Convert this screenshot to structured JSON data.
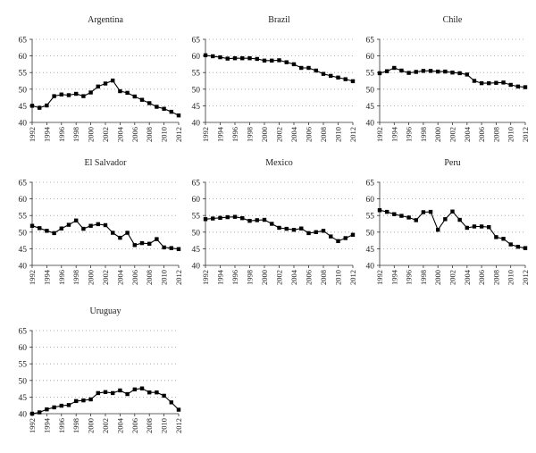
{
  "figure": {
    "x_ticks": [
      "1992",
      "1994",
      "1996",
      "1998",
      "2000",
      "2002",
      "2004",
      "2006",
      "2008",
      "2010",
      "2012"
    ],
    "y_ticks": [
      40,
      45,
      50,
      55,
      60,
      65
    ]
  },
  "chart_data": [
    {
      "type": "line",
      "title": "Argentina",
      "x": [
        1992,
        1993,
        1994,
        1995,
        1996,
        1997,
        1998,
        1999,
        2000,
        2001,
        2002,
        2003,
        2004,
        2005,
        2006,
        2007,
        2008,
        2009,
        2010,
        2011,
        2012
      ],
      "values": [
        45.0,
        44.4,
        45.1,
        47.9,
        48.4,
        48.2,
        48.6,
        47.9,
        49.0,
        50.8,
        51.7,
        52.6,
        49.4,
        48.9,
        47.8,
        46.8,
        45.8,
        44.7,
        44.1,
        43.2,
        42.1
      ],
      "xlim": [
        1992,
        2012
      ],
      "ylim": [
        40,
        65
      ],
      "grid": "dotted horizontal"
    },
    {
      "type": "line",
      "title": "Brazil",
      "x": [
        1992,
        1993,
        1994,
        1995,
        1996,
        1997,
        1998,
        1999,
        2000,
        2001,
        2002,
        2003,
        2004,
        2005,
        2006,
        2007,
        2008,
        2009,
        2010,
        2011,
        2012
      ],
      "values": [
        60.2,
        59.9,
        59.6,
        59.2,
        59.3,
        59.3,
        59.3,
        59.1,
        58.6,
        58.6,
        58.7,
        58.1,
        57.5,
        56.4,
        56.4,
        55.6,
        54.6,
        54.0,
        53.5,
        53.0,
        52.4
      ],
      "xlim": [
        1992,
        2012
      ],
      "ylim": [
        40,
        65
      ],
      "grid": "dotted horizontal"
    },
    {
      "type": "line",
      "title": "Chile",
      "x": [
        1992,
        1993,
        1994,
        1995,
        1996,
        1997,
        1998,
        1999,
        2000,
        2001,
        2002,
        2003,
        2004,
        2005,
        2006,
        2007,
        2008,
        2009,
        2010,
        2011,
        2012
      ],
      "values": [
        54.8,
        55.4,
        56.4,
        55.6,
        54.9,
        55.2,
        55.5,
        55.5,
        55.3,
        55.3,
        55.0,
        54.8,
        54.4,
        52.5,
        51.8,
        51.8,
        51.9,
        52.0,
        51.3,
        50.8,
        50.6
      ],
      "xlim": [
        1992,
        2012
      ],
      "ylim": [
        40,
        65
      ],
      "grid": "dotted horizontal"
    },
    {
      "type": "line",
      "title": "El Salvador",
      "x": [
        1992,
        1993,
        1994,
        1995,
        1996,
        1997,
        1998,
        1999,
        2000,
        2001,
        2002,
        2003,
        2004,
        2005,
        2006,
        2007,
        2008,
        2009,
        2010,
        2011,
        2012
      ],
      "values": [
        51.9,
        51.2,
        50.4,
        49.7,
        51.1,
        52.2,
        53.5,
        51.0,
        51.9,
        52.4,
        52.1,
        49.8,
        48.3,
        49.8,
        46.1,
        46.7,
        46.5,
        47.9,
        45.4,
        45.2,
        44.9
      ],
      "xlim": [
        1992,
        2012
      ],
      "ylim": [
        40,
        65
      ],
      "grid": "dotted horizontal"
    },
    {
      "type": "line",
      "title": "Mexico",
      "x": [
        1992,
        1993,
        1994,
        1995,
        1996,
        1997,
        1998,
        1999,
        2000,
        2001,
        2002,
        2003,
        2004,
        2005,
        2006,
        2007,
        2008,
        2009,
        2010,
        2011,
        2012
      ],
      "values": [
        53.9,
        54.1,
        54.3,
        54.5,
        54.6,
        54.2,
        53.4,
        53.6,
        53.7,
        52.5,
        51.3,
        51.0,
        50.7,
        51.1,
        49.7,
        50.0,
        50.4,
        48.7,
        47.3,
        48.2,
        49.2
      ],
      "xlim": [
        1992,
        2012
      ],
      "ylim": [
        40,
        65
      ],
      "grid": "dotted horizontal"
    },
    {
      "type": "line",
      "title": "Peru",
      "x": [
        1992,
        1993,
        1994,
        1995,
        1996,
        1997,
        1998,
        1999,
        2000,
        2001,
        2002,
        2003,
        2004,
        2005,
        2006,
        2007,
        2008,
        2009,
        2010,
        2011,
        2012
      ],
      "values": [
        56.6,
        56.1,
        55.4,
        54.9,
        54.4,
        53.6,
        56.0,
        56.1,
        50.7,
        53.9,
        56.2,
        53.7,
        51.3,
        51.7,
        51.7,
        51.5,
        48.5,
        48.0,
        46.3,
        45.6,
        45.2
      ],
      "xlim": [
        1992,
        2012
      ],
      "ylim": [
        40,
        65
      ],
      "grid": "dotted horizontal"
    },
    {
      "type": "line",
      "title": "Uruguay",
      "x": [
        1992,
        1993,
        1994,
        1995,
        1996,
        1997,
        1998,
        1999,
        2000,
        2001,
        2002,
        2003,
        2004,
        2005,
        2006,
        2007,
        2008,
        2009,
        2010,
        2011,
        2012
      ],
      "values": [
        40.0,
        40.4,
        41.3,
        41.9,
        42.4,
        42.6,
        43.8,
        44.0,
        44.3,
        46.2,
        46.5,
        46.2,
        47.0,
        45.9,
        47.3,
        47.6,
        46.4,
        46.4,
        45.4,
        43.4,
        41.2
      ],
      "xlim": [
        1992,
        2012
      ],
      "ylim": [
        40,
        65
      ],
      "grid": "dotted horizontal"
    }
  ]
}
